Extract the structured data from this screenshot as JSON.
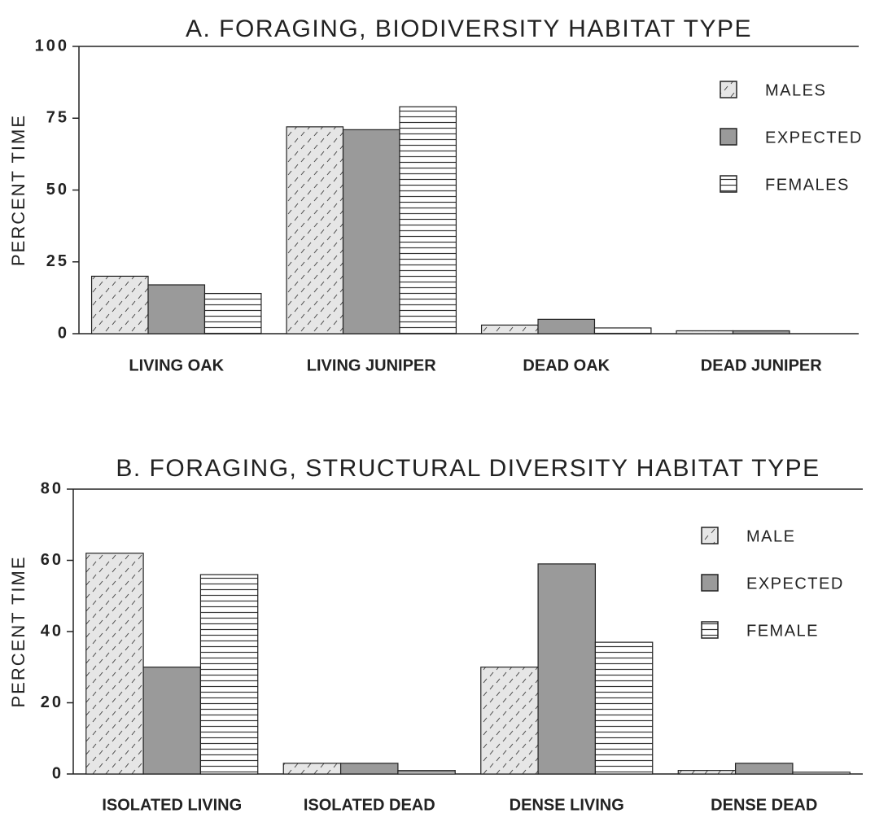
{
  "chart_data": [
    {
      "type": "bar",
      "title": "A. FORAGING, BIODIVERSITY HABITAT TYPE",
      "y_label": "PERCENT TIME",
      "categories": [
        "LIVING OAK",
        "LIVING JUNIPER",
        "DEAD OAK",
        "DEAD JUNIPER"
      ],
      "series": [
        {
          "name": "MALES",
          "color": "#e6e6e6",
          "pattern": "dashes",
          "values": [
            20,
            72,
            3,
            1
          ]
        },
        {
          "name": "EXPECTED",
          "color": "#9a9a9a",
          "pattern": "solid",
          "values": [
            17,
            71,
            5,
            1
          ]
        },
        {
          "name": "FEMALES",
          "color": "#ffffff",
          "pattern": "lines",
          "values": [
            14,
            79,
            2,
            0
          ]
        }
      ],
      "ylim": [
        0,
        100
      ],
      "yticks": [
        0,
        25,
        50,
        75,
        100
      ],
      "legend": "top-right"
    },
    {
      "type": "bar",
      "title": "B. FORAGING, STRUCTURAL DIVERSITY HABITAT TYPE",
      "y_label": "PERCENT TIME",
      "categories": [
        "ISOLATED LIVING",
        "ISOLATED DEAD",
        "DENSE LIVING",
        "DENSE DEAD"
      ],
      "series": [
        {
          "name": "MALE",
          "color": "#e6e6e6",
          "pattern": "dashes",
          "values": [
            62,
            3,
            30,
            1
          ]
        },
        {
          "name": "EXPECTED",
          "color": "#9a9a9a",
          "pattern": "solid",
          "values": [
            30,
            3,
            59,
            3
          ]
        },
        {
          "name": "FEMALE",
          "color": "#ffffff",
          "pattern": "lines",
          "values": [
            56,
            1,
            37,
            0.5
          ]
        }
      ],
      "ylim": [
        0,
        80
      ],
      "yticks": [
        0,
        20,
        40,
        60,
        80
      ],
      "legend": "top-right"
    }
  ]
}
